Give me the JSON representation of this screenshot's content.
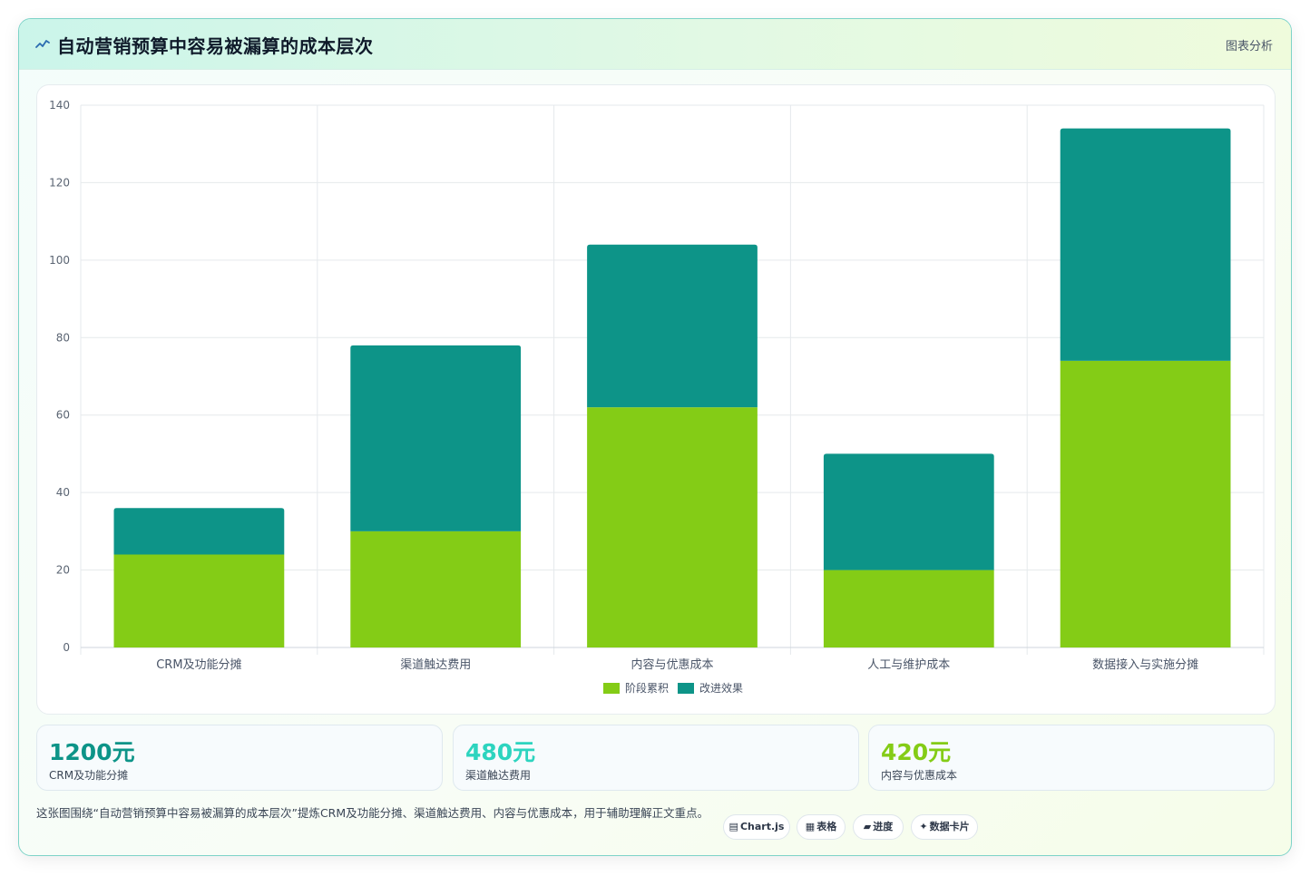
{
  "header": {
    "title": "自动营销预算中容易被漏算的成本层次",
    "tag": "图表分析",
    "icon": "chart-line-icon",
    "icon_color": "#2b6cb0"
  },
  "chart_data": {
    "type": "bar",
    "stacked": true,
    "categories": [
      "CRM及功能分摊",
      "渠道触达费用",
      "内容与优惠成本",
      "人工与维护成本",
      "数据接入与实施分摊"
    ],
    "series": [
      {
        "name": "阶段累积",
        "values": [
          24,
          30,
          62,
          20,
          74
        ],
        "color": "#84cc16"
      },
      {
        "name": "改进效果",
        "values": [
          12,
          48,
          42,
          30,
          60
        ],
        "color": "#0d9488"
      }
    ],
    "ylim": [
      0,
      140
    ],
    "yticks": [
      "0",
      "20",
      "40",
      "60",
      "80",
      "100",
      "120",
      "140"
    ],
    "grid": true,
    "legend": "bottom"
  },
  "stats": [
    {
      "value": "1200元",
      "label": "CRM及功能分摊",
      "color": "#0d9488"
    },
    {
      "value": "480元",
      "label": "渠道触达费用",
      "color": "#2dd4bf"
    },
    {
      "value": "420元",
      "label": "内容与优惠成本",
      "color": "#84cc16"
    }
  ],
  "footnote": "这张图围绕“自动营销预算中容易被漏算的成本层次”提炼CRM及功能分摊、渠道触达费用、内容与优惠成本，用于辅助理解正文重点。",
  "pills": [
    {
      "icon": "▤",
      "icon_name": "chart-icon",
      "label": "Chart.js"
    },
    {
      "icon": "▦",
      "icon_name": "table-icon",
      "label": "表格"
    },
    {
      "icon": "▰",
      "icon_name": "progress-icon",
      "label": "进度"
    },
    {
      "icon": "✦",
      "icon_name": "sparkle-icon",
      "label": "数据卡片"
    }
  ]
}
